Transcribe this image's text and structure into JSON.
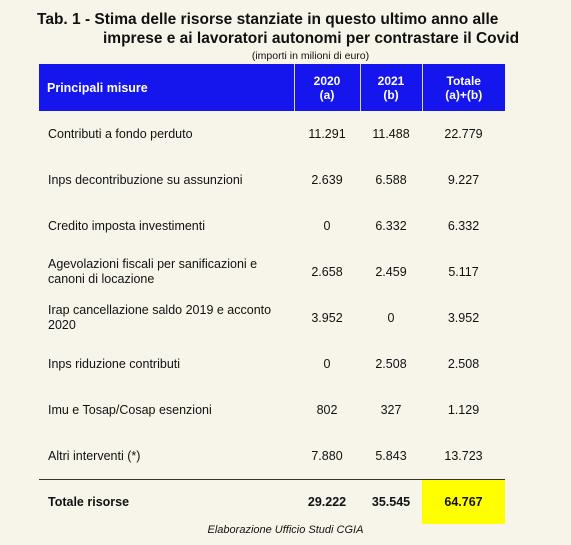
{
  "title": {
    "line1": "Tab. 1 - Stima delle risorse stanziate in questo ultimo anno alle",
    "line2": "imprese e ai lavoratori autonomi per contrastare il Covid"
  },
  "subtitle": "(importi in milioni di euro)",
  "table": {
    "headers": {
      "measure": "Principali misure",
      "col2020_year": "2020",
      "col2020_tag": "(a)",
      "col2021_year": "2021",
      "col2021_tag": "(b)",
      "total_label": "Totale",
      "total_formula": "(a)+(b)"
    },
    "rows": [
      {
        "label": "Contributi a fondo perduto",
        "v2020": "11.291",
        "v2021": "11.488",
        "total": "22.779"
      },
      {
        "label": "Inps decontribuzione su assunzioni",
        "v2020": "2.639",
        "v2021": "6.588",
        "total": "9.227"
      },
      {
        "label": "Credito imposta investimenti",
        "v2020": "0",
        "v2021": "6.332",
        "total": "6.332"
      },
      {
        "label": "Agevolazioni fiscali per sanificazioni e canoni di locazione",
        "v2020": "2.658",
        "v2021": "2.459",
        "total": "5.117"
      },
      {
        "label": "Irap cancellazione saldo 2019 e acconto 2020",
        "v2020": "3.952",
        "v2021": "0",
        "total": "3.952"
      },
      {
        "label": "Inps riduzione contributi",
        "v2020": "0",
        "v2021": "2.508",
        "total": "2.508"
      },
      {
        "label": "Imu e Tosap/Cosap esenzioni",
        "v2020": "802",
        "v2021": "327",
        "total": "1.129"
      },
      {
        "label": "Altri interventi (*)",
        "v2020": "7.880",
        "v2021": "5.843",
        "total": "13.723"
      }
    ],
    "total_row": {
      "label": "Totale risorse",
      "v2020": "29.222",
      "v2021": "35.545",
      "total": "64.767"
    }
  },
  "footer": "Elaborazione  Ufficio Studi CGIA",
  "colors": {
    "header_bg": "#1515ee",
    "highlight": "#ffff00",
    "page_bg": "#f7f5ea"
  }
}
